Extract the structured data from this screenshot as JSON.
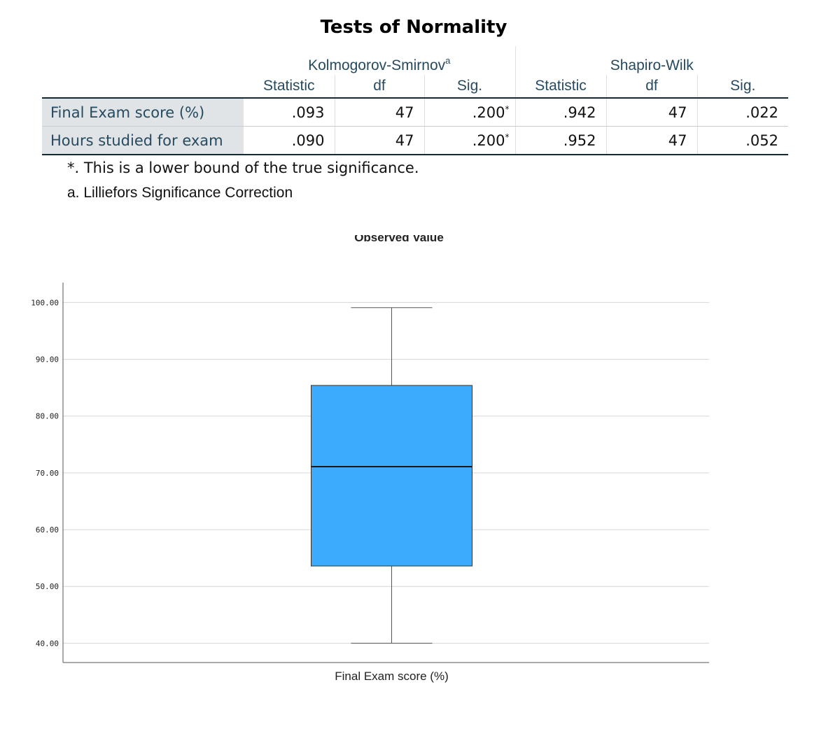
{
  "table": {
    "title": "Tests of Normality",
    "groups": [
      {
        "label": "Kolmogorov-Smirnov",
        "sup": "a"
      },
      {
        "label": "Shapiro-Wilk",
        "sup": ""
      }
    ],
    "columns": [
      "Statistic",
      "df",
      "Sig.",
      "Statistic",
      "df",
      "Sig."
    ],
    "rows": [
      {
        "label": "Final Exam score (%)",
        "cells": [
          ".093",
          "47",
          ".200",
          ".942",
          "47",
          ".022"
        ],
        "sup": "*"
      },
      {
        "label": "Hours studied for exam",
        "cells": [
          ".090",
          "47",
          ".200",
          ".952",
          "47",
          ".052"
        ],
        "sup": "*"
      }
    ],
    "footnotes": [
      "*. This is a lower bound of the true significance.",
      "a. Lilliefors Significance Correction"
    ]
  },
  "chart_data": {
    "type": "boxplot",
    "title": "Observed Value",
    "categories": [
      "Final Exam score (%)"
    ],
    "xlabel": "Final Exam score (%)",
    "ylabel": "",
    "yticks": [
      "40.00",
      "50.00",
      "60.00",
      "70.00",
      "80.00",
      "90.00",
      "100.00"
    ],
    "ylim": [
      36.6,
      103.5
    ],
    "grid": true,
    "box_color": "#3cabfe",
    "boxes": [
      {
        "category": "Final Exam score (%)",
        "min": 40,
        "q1": 53.6,
        "median": 71.1,
        "q3": 85.4,
        "max": 99.1
      }
    ]
  }
}
